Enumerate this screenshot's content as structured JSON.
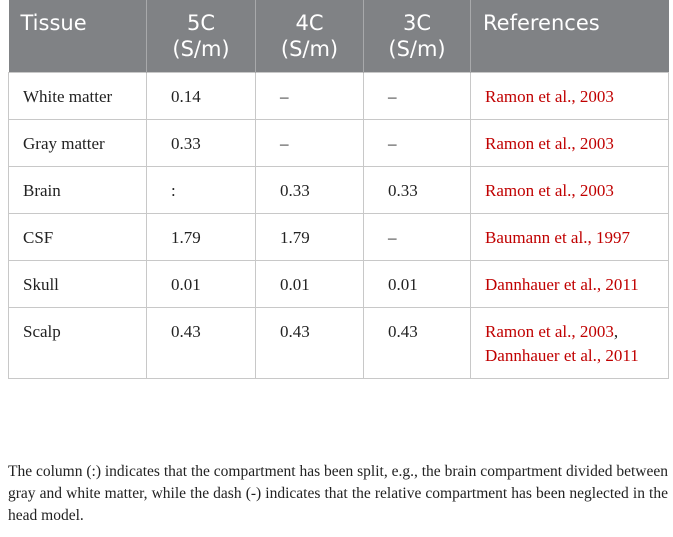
{
  "table": {
    "headers": [
      "Tissue",
      "5C (S/m)",
      "4C (S/m)",
      "3C (S/m)",
      "References"
    ],
    "reference_separator": ",",
    "rows": [
      {
        "tissue": "White matter",
        "c5": "0.14",
        "c4": "–",
        "c3": "–",
        "references": [
          "Ramon et al., 2003"
        ]
      },
      {
        "tissue": "Gray matter",
        "c5": "0.33",
        "c4": "–",
        "c3": "–",
        "references": [
          "Ramon et al., 2003"
        ]
      },
      {
        "tissue": "Brain",
        "c5": ":",
        "c4": "0.33",
        "c3": "0.33",
        "references": [
          "Ramon et al., 2003"
        ]
      },
      {
        "tissue": "CSF",
        "c5": "1.79",
        "c4": "1.79",
        "c3": "–",
        "references": [
          "Baumann et al., 1997"
        ]
      },
      {
        "tissue": "Skull",
        "c5": "0.01",
        "c4": "0.01",
        "c3": "0.01",
        "references": [
          "Dannhauer et al., 2011"
        ]
      },
      {
        "tissue": "Scalp",
        "c5": "0.43",
        "c4": "0.43",
        "c3": "0.43",
        "references": [
          "Ramon et al., 2003",
          "Dannhauer et al., 2011"
        ]
      }
    ],
    "footnote": "The column (:) indicates that the compartment has been split, e.g., the brain compartment divided between gray and white matter, while the dash (-) indicates that the relative compartment has been neglected in the head model."
  }
}
